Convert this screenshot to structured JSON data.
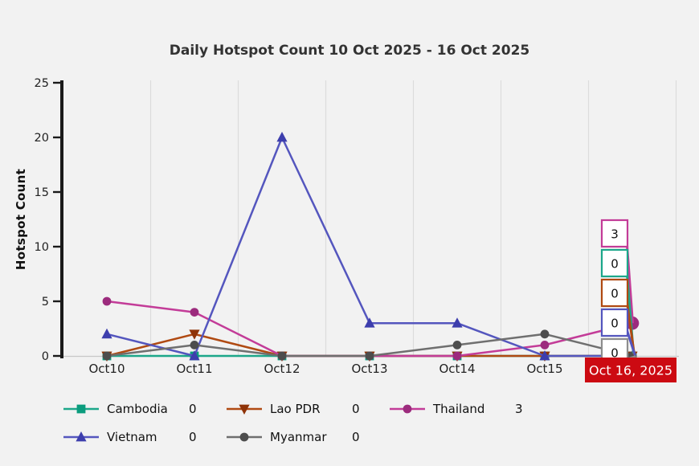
{
  "title": "Daily Hotspot Count 10 Oct 2025 - 16 Oct 2025",
  "colors": {
    "background": "#f2f2f2",
    "title_text": "#333333",
    "axis_text": "#222222",
    "axis_line": "#1a1a1a",
    "gridline": "#dcdcdc",
    "zero_line": "#c8c8c8"
  },
  "chart_data": {
    "type": "line",
    "title": "Daily Hotspot Count 10 Oct 2025 - 16 Oct 2025",
    "xlabel": "",
    "ylabel": "Hotspot Count",
    "categories": [
      "Oct10",
      "Oct11",
      "Oct12",
      "Oct13",
      "Oct14",
      "Oct15",
      "Oct16"
    ],
    "series": [
      {
        "name": "Cambodia",
        "values": [
          0,
          0,
          0,
          0,
          0,
          0,
          0
        ],
        "line_color": "#1ca78a",
        "marker_color": "#0b9c7d",
        "marker": "square"
      },
      {
        "name": "Lao PDR",
        "values": [
          0,
          2,
          0,
          0,
          0,
          0,
          0
        ],
        "line_color": "#b04a12",
        "marker_color": "#8f3307",
        "marker": "triangle-down"
      },
      {
        "name": "Thailand",
        "values": [
          5,
          4,
          0,
          0,
          0,
          1,
          3
        ],
        "line_color": "#c33c98",
        "marker_color": "#9c2b7d",
        "marker": "circle"
      },
      {
        "name": "Vietnam",
        "values": [
          2,
          0,
          20,
          3,
          3,
          0,
          0
        ],
        "line_color": "#5456be",
        "marker_color": "#3d3ead",
        "marker": "triangle-up"
      },
      {
        "name": "Myanmar",
        "values": [
          0,
          1,
          0,
          0,
          1,
          2,
          0
        ],
        "line_color": "#6f6f6f",
        "marker_color": "#4d4d4d",
        "marker": "circle"
      }
    ],
    "ylim": [
      0,
      25
    ],
    "yticks": [
      0,
      5,
      10,
      15,
      20,
      25
    ],
    "grid": "vertical",
    "legend_position": "bottom"
  },
  "hover": {
    "date_label": "Oct 16, 2025",
    "bg": "#cc0a12",
    "text_color": "#ffffff",
    "active_series": "Thailand",
    "active_index": 6,
    "entries": [
      {
        "series": "Thailand",
        "value": "3",
        "border": "#c33c98"
      },
      {
        "series": "Cambodia",
        "value": "0",
        "border": "#1ca78a"
      },
      {
        "series": "Lao PDR",
        "value": "0",
        "border": "#b04a12"
      },
      {
        "series": "Vietnam",
        "value": "0",
        "border": "#5456be"
      },
      {
        "series": "Myanmar",
        "value": "0",
        "border": "#8d8d8d"
      }
    ]
  },
  "legend": {
    "items": [
      {
        "label": "Cambodia",
        "value": "0",
        "series": "Cambodia"
      },
      {
        "label": "Lao PDR",
        "value": "0",
        "series": "Lao PDR"
      },
      {
        "label": "Thailand",
        "value": "3",
        "series": "Thailand"
      },
      {
        "label": "Vietnam",
        "value": "0",
        "series": "Vietnam"
      },
      {
        "label": "Myanmar",
        "value": "0",
        "series": "Myanmar"
      }
    ]
  }
}
